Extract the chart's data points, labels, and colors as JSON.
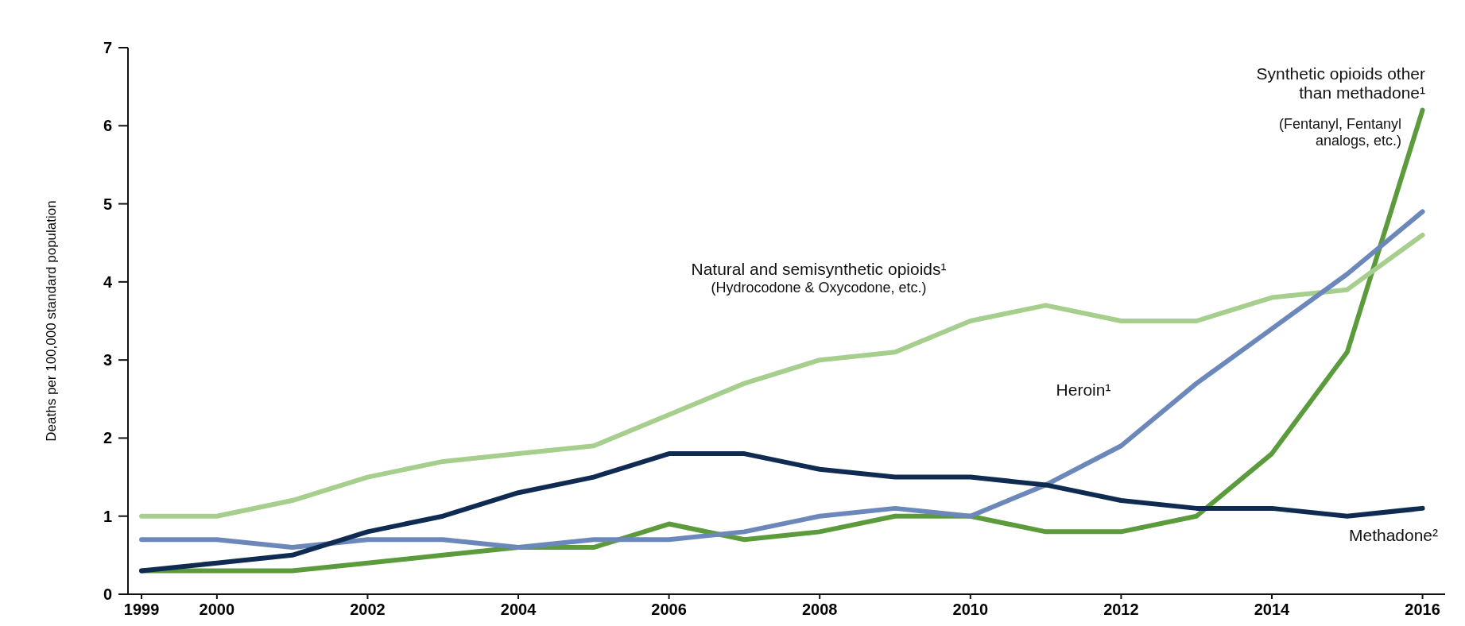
{
  "chart_data": {
    "type": "line",
    "ylabel": "Deaths per 100,000 standard population",
    "x": [
      1999,
      2000,
      2001,
      2002,
      2003,
      2004,
      2005,
      2006,
      2007,
      2008,
      2009,
      2010,
      2011,
      2012,
      2013,
      2014,
      2015,
      2016
    ],
    "xlim": [
      1998.82,
      2016.3
    ],
    "xticks": [
      1999,
      2000,
      2002,
      2004,
      2006,
      2008,
      2010,
      2012,
      2014,
      2016
    ],
    "ylim": [
      0,
      7
    ],
    "yticks": [
      0,
      1,
      2,
      3,
      4,
      5,
      6,
      7
    ],
    "grid": false,
    "legend": false,
    "marker": "none",
    "line_style": "solid",
    "series": [
      {
        "name": "Synthetic opioids other than methadone¹",
        "color": "#5b9b3c",
        "values": [
          0.3,
          0.3,
          0.3,
          0.4,
          0.5,
          0.6,
          0.6,
          0.9,
          0.7,
          0.8,
          1.0,
          1.0,
          0.8,
          0.8,
          1.0,
          1.8,
          3.1,
          6.2
        ]
      },
      {
        "name": "Natural and semisynthetic opioids¹",
        "color": "#a6cf8e",
        "values": [
          1.0,
          1.0,
          1.2,
          1.5,
          1.7,
          1.8,
          1.9,
          2.3,
          2.7,
          3.0,
          3.1,
          3.5,
          3.7,
          3.5,
          3.5,
          3.8,
          3.9,
          4.6
        ]
      },
      {
        "name": "Heroin¹",
        "color": "#6c88ba",
        "values": [
          0.7,
          0.7,
          0.6,
          0.7,
          0.7,
          0.6,
          0.7,
          0.7,
          0.8,
          1.0,
          1.1,
          1.0,
          1.4,
          1.9,
          2.7,
          3.4,
          4.1,
          4.9
        ]
      },
      {
        "name": "Methadone²",
        "color": "#0f2b52",
        "values": [
          0.3,
          0.4,
          0.5,
          0.8,
          1.0,
          1.3,
          1.5,
          1.8,
          1.8,
          1.6,
          1.5,
          1.5,
          1.4,
          1.2,
          1.1,
          1.1,
          1.0,
          1.1
        ]
      }
    ],
    "annotations": [
      "(Fentanyl, Fentanyl analogs, etc.)",
      "(Hydrocodone & Oxycodone, etc.)"
    ]
  }
}
